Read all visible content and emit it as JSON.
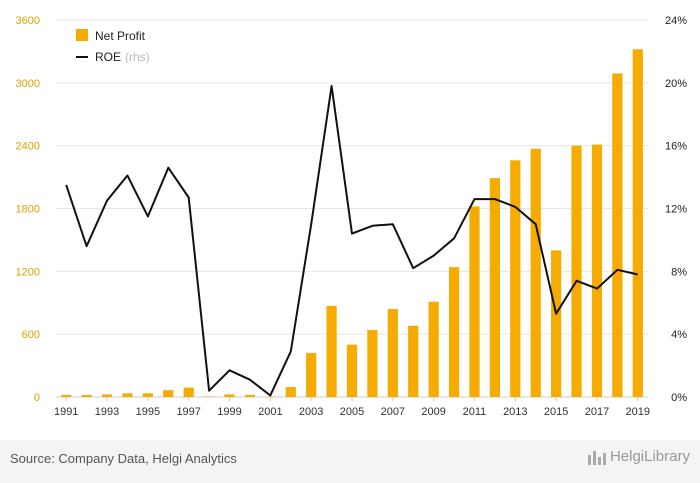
{
  "chart_data": {
    "type": "bar",
    "x": [
      "1991",
      "1992",
      "1993",
      "1994",
      "1995",
      "1996",
      "1997",
      "1998",
      "1999",
      "2000",
      "2001",
      "2002",
      "2003",
      "2004",
      "2005",
      "2006",
      "2007",
      "2008",
      "2009",
      "2010",
      "2011",
      "2012",
      "2013",
      "2014",
      "2015",
      "2016",
      "2017",
      "2018",
      "2019"
    ],
    "x_tick_labels": [
      "1991",
      "1993",
      "1995",
      "1997",
      "1999",
      "2001",
      "2003",
      "2005",
      "2007",
      "2009",
      "2011",
      "2013",
      "2015",
      "2017",
      "2019"
    ],
    "series": [
      {
        "name": "Net Profit",
        "type": "bar",
        "axis": "left",
        "color": "#f5ab00",
        "values": [
          20,
          20,
          25,
          35,
          35,
          65,
          90,
          5,
          25,
          20,
          5,
          95,
          420,
          870,
          500,
          640,
          840,
          680,
          910,
          1240,
          1820,
          2090,
          2260,
          2370,
          1400,
          2400,
          2410,
          3090,
          3320
        ]
      },
      {
        "name": "ROE",
        "name_suffix": "(rhs)",
        "type": "line",
        "axis": "right",
        "color": "#111111",
        "values": [
          13.5,
          9.6,
          12.5,
          14.1,
          11.5,
          14.6,
          12.7,
          0.4,
          1.7,
          1.1,
          0.1,
          2.9,
          11.0,
          19.8,
          10.4,
          10.9,
          11.0,
          8.2,
          9.0,
          10.1,
          12.6,
          12.6,
          12.1,
          11.0,
          5.3,
          7.4,
          6.9,
          8.1,
          7.8
        ]
      }
    ],
    "y_left": {
      "min": 0,
      "max": 3600,
      "ticks": [
        "0",
        "600",
        "1200",
        "1800",
        "2400",
        "3000",
        "3600"
      ]
    },
    "y_right": {
      "min": 0,
      "max": 24,
      "ticks": [
        "0%",
        "4%",
        "8%",
        "12%",
        "16%",
        "20%",
        "24%"
      ]
    },
    "legend_position": "top-left",
    "grid": true
  },
  "footer": {
    "source": "Source: Company Data, Helgi Analytics",
    "brand": "HelgiLibrary"
  }
}
